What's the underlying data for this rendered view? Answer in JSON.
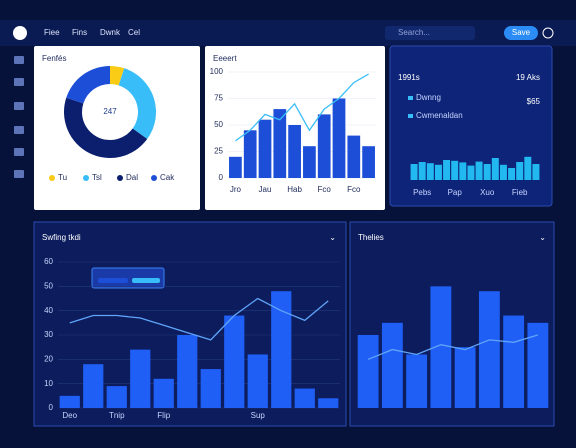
{
  "nav": {
    "items": [
      "Fiee",
      "Fins",
      "Dwnk",
      "Cel"
    ],
    "search": "Search...",
    "button": "Save"
  },
  "chart_data": [
    {
      "type": "pie",
      "title": "Fenfés",
      "total": 247,
      "categories": [
        "Tu",
        "Tsl",
        "Dal",
        "Cak"
      ],
      "values": [
        5,
        30,
        45,
        20
      ],
      "colors": [
        "#facc15",
        "#38bdf8",
        "#0b1f6e",
        "#1d4ed8"
      ]
    },
    {
      "type": "bar",
      "title": "Eeeert",
      "categories": [
        "Jro",
        null,
        "Jau",
        null,
        "Hab",
        null,
        "Fco",
        null,
        "Fco",
        null
      ],
      "ylim": [
        0,
        100
      ],
      "yticks": [
        0,
        25,
        50,
        75,
        100
      ],
      "series": [
        {
          "type": "bar",
          "color": "#1d4ed8",
          "values": [
            20,
            45,
            55,
            65,
            50,
            30,
            60,
            75,
            40,
            30
          ]
        },
        {
          "type": "line",
          "color": "#38bdf8",
          "values": [
            35,
            45,
            60,
            55,
            70,
            45,
            65,
            75,
            90,
            98
          ]
        }
      ]
    },
    {
      "type": "bar",
      "title": "1991s",
      "subtitle": "19 Aks",
      "stat": "$65",
      "legend": [
        "Dwnng",
        "Cwmenaldan"
      ],
      "categories": [
        null,
        "Pebs",
        null,
        null,
        null,
        "Pap",
        null,
        null,
        null,
        "Xuo",
        null,
        null,
        null,
        "Fieb",
        null,
        null
      ],
      "ylim": [
        0,
        100
      ],
      "series": [
        {
          "type": "bar",
          "color": "#22b8f0",
          "values": [
            40,
            45,
            42,
            38,
            50,
            48,
            44,
            36,
            46,
            40,
            55,
            38,
            30,
            45,
            58,
            40
          ]
        }
      ]
    },
    {
      "type": "bar",
      "title": "Swfing tkdi",
      "categories": [
        "Deo",
        null,
        "Tnip",
        null,
        "Flip",
        null,
        null,
        null,
        "Sup",
        null,
        null,
        null
      ],
      "ylim": [
        0,
        60
      ],
      "yticks": [
        0,
        10,
        20,
        30,
        40,
        50,
        60
      ],
      "series": [
        {
          "type": "bar",
          "color": "#1f5ff5",
          "values": [
            5,
            18,
            9,
            24,
            12,
            30,
            16,
            38,
            22,
            48,
            8,
            4
          ]
        },
        {
          "type": "line",
          "color": "#60a5fa",
          "values": [
            35,
            38,
            38,
            37,
            34,
            31,
            28,
            38,
            45,
            40,
            36,
            44
          ]
        }
      ]
    },
    {
      "type": "bar",
      "title": "Thelies",
      "categories": [
        null,
        null,
        null,
        null,
        null,
        null,
        null,
        null
      ],
      "ylim": [
        0,
        60
      ],
      "series": [
        {
          "type": "bar",
          "color": "#1f5ff5",
          "values": [
            30,
            35,
            22,
            50,
            25,
            48,
            38,
            35
          ]
        },
        {
          "type": "line",
          "color": "#60a5fa",
          "values": [
            20,
            24,
            22,
            26,
            24,
            28,
            27,
            30
          ]
        }
      ]
    }
  ]
}
